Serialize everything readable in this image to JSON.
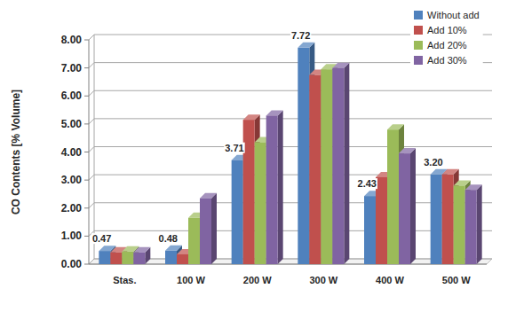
{
  "chart_data": {
    "type": "bar",
    "y_label": "CO Contents [% Volume]",
    "categories": [
      "Stas.",
      "100 W",
      "200 W",
      "300 W",
      "400 W",
      "500 W"
    ],
    "series": [
      {
        "name": "Without add",
        "color": "#4f81bd",
        "values": [
          0.47,
          0.48,
          3.71,
          7.72,
          2.43,
          3.2
        ],
        "value_labels": [
          "0.47",
          "0.48",
          "3.71",
          "7.72",
          "2.43",
          "3.20"
        ],
        "data_labels": true
      },
      {
        "name": "Add 10%",
        "color": "#c0504d",
        "values": [
          0.42,
          0.35,
          5.15,
          6.75,
          3.1,
          3.2
        ]
      },
      {
        "name": "Add 20%",
        "color": "#9bbb59",
        "values": [
          0.45,
          1.65,
          4.35,
          6.95,
          4.8,
          2.8
        ]
      },
      {
        "name": "Add 30%",
        "color": "#8064a2",
        "values": [
          0.42,
          2.35,
          5.3,
          7.0,
          3.95,
          2.65
        ]
      }
    ],
    "ylim": [
      0,
      8
    ],
    "yticks": [
      {
        "value": 0,
        "label": "0.00"
      },
      {
        "value": 1,
        "label": "1.00"
      },
      {
        "value": 2,
        "label": "2.00"
      },
      {
        "value": 3,
        "label": "3.00"
      },
      {
        "value": 4,
        "label": "4.00"
      },
      {
        "value": 5,
        "label": "5.00"
      },
      {
        "value": 6,
        "label": "6.00"
      },
      {
        "value": 7,
        "label": "7.00"
      },
      {
        "value": 8,
        "label": "8.00"
      }
    ],
    "grid": true,
    "legend": "top-right"
  }
}
